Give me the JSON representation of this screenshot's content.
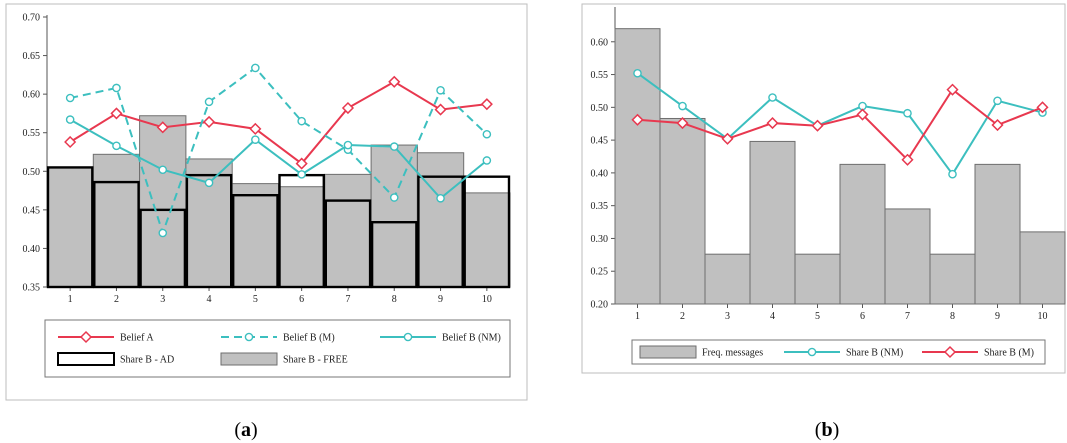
{
  "panels": [
    {
      "caption_open": "(",
      "caption_letter": "a",
      "caption_close": ")",
      "chart_data": {
        "type": "bar",
        "categories": [
          "1",
          "2",
          "3",
          "4",
          "5",
          "6",
          "7",
          "8",
          "9",
          "10"
        ],
        "ylim": [
          0.35,
          0.7
        ],
        "yticks": [
          "0.35",
          "0.40",
          "0.45",
          "0.50",
          "0.55",
          "0.60",
          "0.65",
          "0.70"
        ],
        "bars": [
          {
            "name": "Share B - FREE",
            "color": "#c0c0c0",
            "values": [
              0.505,
              0.522,
              0.572,
              0.516,
              0.484,
              0.48,
              0.496,
              0.534,
              0.524,
              0.472
            ]
          },
          {
            "name": "Share B - AD",
            "color": "#000000",
            "values": [
              0.505,
              0.486,
              0.45,
              0.495,
              0.469,
              0.495,
              0.462,
              0.434,
              0.493,
              0.493
            ]
          }
        ],
        "series": [
          {
            "name": "Belief A",
            "color": "#e8384f",
            "marker": "diamond",
            "dash": false,
            "values": [
              0.538,
              0.575,
              0.557,
              0.564,
              0.555,
              0.51,
              0.582,
              0.616,
              0.58,
              0.587
            ]
          },
          {
            "name": "Belief B (M)",
            "color": "#3cbfbf",
            "marker": "circle",
            "dash": true,
            "values": [
              0.595,
              0.608,
              0.42,
              0.59,
              0.634,
              0.565,
              0.528,
              0.466,
              0.605,
              0.548
            ]
          },
          {
            "name": "Belief B (NM)",
            "color": "#3cbfbf",
            "marker": "circle",
            "dash": false,
            "values": [
              0.567,
              0.533,
              0.502,
              0.485,
              0.541,
              0.496,
              0.534,
              0.532,
              0.465,
              0.514
            ]
          }
        ],
        "legend": [
          {
            "label": "Belief A",
            "kind": "line",
            "color": "#e8384f",
            "marker": "diamond",
            "dash": false
          },
          {
            "label": "Belief B (M)",
            "kind": "line",
            "color": "#3cbfbf",
            "marker": "circle",
            "dash": true
          },
          {
            "label": "Belief B (NM)",
            "kind": "line",
            "color": "#3cbfbf",
            "marker": "circle",
            "dash": false
          },
          {
            "label": "Share B - AD",
            "kind": "box",
            "color": "#000000"
          },
          {
            "label": "Share B - FREE",
            "kind": "fill",
            "color": "#c0c0c0"
          }
        ],
        "legend_placement": "bottom"
      }
    },
    {
      "caption_open": "(",
      "caption_letter": "b",
      "caption_close": ")",
      "chart_data": {
        "type": "bar",
        "categories": [
          "1",
          "2",
          "3",
          "4",
          "5",
          "6",
          "7",
          "8",
          "9",
          "10"
        ],
        "ylim": [
          0.2,
          0.65
        ],
        "yticks": [
          "0.20",
          "0.25",
          "0.30",
          "0.35",
          "0.40",
          "0.45",
          "0.50",
          "0.55",
          "0.60"
        ],
        "bars": [
          {
            "name": "Freq. messages",
            "color": "#c0c0c0",
            "values": [
              0.62,
              0.483,
              0.276,
              0.448,
              0.276,
              0.413,
              0.345,
              0.276,
              0.413,
              0.31
            ]
          }
        ],
        "series": [
          {
            "name": "Share B (NM)",
            "color": "#3cbfbf",
            "marker": "circle",
            "dash": false,
            "values": [
              0.552,
              0.502,
              0.452,
              0.515,
              0.472,
              0.502,
              0.491,
              0.398,
              0.51,
              0.492
            ]
          },
          {
            "name": "Share B (M)",
            "color": "#e8384f",
            "marker": "diamond",
            "dash": false,
            "values": [
              0.481,
              0.476,
              0.452,
              0.476,
              0.472,
              0.489,
              0.42,
              0.527,
              0.473,
              0.5
            ]
          }
        ],
        "legend": [
          {
            "label": "Freq. messages",
            "kind": "fill",
            "color": "#c0c0c0"
          },
          {
            "label": "Share B (NM)",
            "kind": "line",
            "color": "#3cbfbf",
            "marker": "circle",
            "dash": false
          },
          {
            "label": "Share B (M)",
            "kind": "line",
            "color": "#e8384f",
            "marker": "diamond",
            "dash": false
          }
        ],
        "legend_placement": "bottom"
      }
    }
  ]
}
